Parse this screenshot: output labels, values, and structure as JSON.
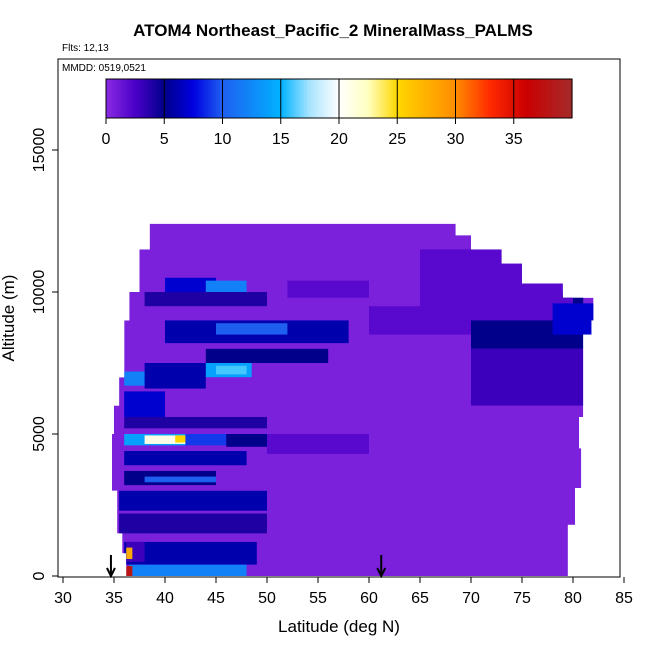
{
  "chart_data": {
    "type": "heatmap",
    "title": "ATOM4 Northeast_Pacific_2 MineralMass_PALMS",
    "flights_label": "Flts: 12,13",
    "dates_label": "MMDD: 0519,0521",
    "xlabel": "Latitude (deg N)",
    "ylabel": "Altitude (m)",
    "xlim": [
      30,
      85
    ],
    "ylim": [
      0,
      18000
    ],
    "x_ticks": [
      "30",
      "35",
      "40",
      "45",
      "50",
      "55",
      "60",
      "65",
      "70",
      "75",
      "80",
      "85"
    ],
    "y_ticks": [
      "0",
      "5000",
      "10000",
      "15000"
    ],
    "colorbar": {
      "range": [
        0,
        40
      ],
      "ticks": [
        "0",
        "5",
        "10",
        "15",
        "20",
        "25",
        "30",
        "35"
      ],
      "stops": [
        {
          "v": 0,
          "c": "#8a2be2"
        },
        {
          "v": 2.5,
          "c": "#4b00c8"
        },
        {
          "v": 5,
          "c": "#00008b"
        },
        {
          "v": 7.5,
          "c": "#0000e0"
        },
        {
          "v": 10,
          "c": "#1e5ff0"
        },
        {
          "v": 15,
          "c": "#00b2ff"
        },
        {
          "v": 17.5,
          "c": "#a9e4ff"
        },
        {
          "v": 20,
          "c": "#ffffff"
        },
        {
          "v": 22.5,
          "c": "#ffffc0"
        },
        {
          "v": 25,
          "c": "#ffd700"
        },
        {
          "v": 30,
          "c": "#ff8c00"
        },
        {
          "v": 33,
          "c": "#ff2a00"
        },
        {
          "v": 36,
          "c": "#cc0000"
        },
        {
          "v": 40,
          "c": "#a52a2a"
        }
      ]
    },
    "arrows_latitude": [
      34.7,
      61.2
    ],
    "domain_outline": [
      [
        36.2,
        0
      ],
      [
        79.5,
        0
      ],
      [
        79.5,
        1800
      ],
      [
        80.2,
        1800
      ],
      [
        80.2,
        3100
      ],
      [
        80.8,
        3100
      ],
      [
        80.8,
        4500
      ],
      [
        80.6,
        4500
      ],
      [
        80.6,
        5600
      ],
      [
        81.0,
        5600
      ],
      [
        81.0,
        8500
      ],
      [
        81.8,
        8500
      ],
      [
        81.8,
        9000
      ],
      [
        82.0,
        9000
      ],
      [
        82.0,
        9800
      ],
      [
        79.0,
        9800
      ],
      [
        79.0,
        10300
      ],
      [
        75.0,
        10300
      ],
      [
        75.0,
        11000
      ],
      [
        73.0,
        11000
      ],
      [
        73.0,
        11500
      ],
      [
        70.0,
        11500
      ],
      [
        70.0,
        12000
      ],
      [
        68.5,
        12000
      ],
      [
        68.5,
        12400
      ],
      [
        38.5,
        12400
      ],
      [
        38.5,
        11500
      ],
      [
        37.5,
        11500
      ],
      [
        37.5,
        10000
      ],
      [
        36.5,
        10000
      ],
      [
        36.5,
        9000
      ],
      [
        36.0,
        9000
      ],
      [
        36.0,
        7000
      ],
      [
        35.5,
        7000
      ],
      [
        35.5,
        6000
      ],
      [
        35.0,
        6000
      ],
      [
        35.0,
        5000
      ],
      [
        34.8,
        5000
      ],
      [
        34.8,
        3000
      ],
      [
        35.3,
        3000
      ],
      [
        35.3,
        1500
      ],
      [
        35.8,
        1500
      ],
      [
        35.8,
        800
      ],
      [
        36.2,
        800
      ],
      [
        36.2,
        0
      ]
    ],
    "blobs": [
      {
        "lat": [
          36.0,
          42.0
        ],
        "alt": [
          4600,
          5000
        ],
        "val": 14
      },
      {
        "lat": [
          38.0,
          42.0
        ],
        "alt": [
          4650,
          4950
        ],
        "val": 21
      },
      {
        "lat": [
          41.0,
          42.2
        ],
        "alt": [
          4700,
          4950
        ],
        "val": 25
      },
      {
        "lat": [
          42.0,
          46.0
        ],
        "alt": [
          4600,
          5000
        ],
        "val": 9
      },
      {
        "lat": [
          46.0,
          52.0
        ],
        "alt": [
          4550,
          5000
        ],
        "val": 5
      },
      {
        "lat": [
          36.0,
          41.0
        ],
        "alt": [
          6700,
          7200
        ],
        "val": 12
      },
      {
        "lat": [
          43.0,
          48.5
        ],
        "alt": [
          7000,
          7500
        ],
        "val": 14
      },
      {
        "lat": [
          45.0,
          48.0
        ],
        "alt": [
          7100,
          7400
        ],
        "val": 16
      },
      {
        "lat": [
          38.0,
          44.0
        ],
        "alt": [
          6600,
          7500
        ],
        "val": 6
      },
      {
        "lat": [
          44.0,
          56.0
        ],
        "alt": [
          7500,
          8000
        ],
        "val": 5
      },
      {
        "lat": [
          40.0,
          58.0
        ],
        "alt": [
          8200,
          9000
        ],
        "val": 6
      },
      {
        "lat": [
          45.0,
          52.0
        ],
        "alt": [
          8500,
          8900
        ],
        "val": 10
      },
      {
        "lat": [
          40.0,
          45.0
        ],
        "alt": [
          9900,
          10500
        ],
        "val": 7
      },
      {
        "lat": [
          44.0,
          48.0
        ],
        "alt": [
          9900,
          10400
        ],
        "val": 12
      },
      {
        "lat": [
          38.0,
          50.0
        ],
        "alt": [
          9500,
          10000
        ],
        "val": 4
      },
      {
        "lat": [
          36.0,
          40.0
        ],
        "alt": [
          5600,
          6500
        ],
        "val": 7
      },
      {
        "lat": [
          36.0,
          50.0
        ],
        "alt": [
          5200,
          5600
        ],
        "val": 4
      },
      {
        "lat": [
          36.0,
          48.0
        ],
        "alt": [
          3900,
          4400
        ],
        "val": 6
      },
      {
        "lat": [
          36.0,
          45.0
        ],
        "alt": [
          3200,
          3700
        ],
        "val": 5
      },
      {
        "lat": [
          38.0,
          45.0
        ],
        "alt": [
          3300,
          3500
        ],
        "val": 10
      },
      {
        "lat": [
          35.5,
          50.0
        ],
        "alt": [
          2300,
          3000
        ],
        "val": 6
      },
      {
        "lat": [
          35.5,
          50.0
        ],
        "alt": [
          1500,
          2200
        ],
        "val": 4
      },
      {
        "lat": [
          36.0,
          49.0
        ],
        "alt": [
          400,
          1200
        ],
        "val": 6
      },
      {
        "lat": [
          36.2,
          38.0
        ],
        "alt": [
          500,
          1200
        ],
        "val": 3
      },
      {
        "lat": [
          36.5,
          48.0
        ],
        "alt": [
          0,
          400
        ],
        "val": 12
      },
      {
        "lat": [
          36.2,
          36.8
        ],
        "alt": [
          600,
          1000
        ],
        "val": 28
      },
      {
        "lat": [
          36.2,
          36.8
        ],
        "alt": [
          0,
          350
        ],
        "val": 38
      },
      {
        "lat": [
          50.0,
          60.0
        ],
        "alt": [
          4300,
          5000
        ],
        "val": 2
      },
      {
        "lat": [
          70.0,
          81.0
        ],
        "alt": [
          8000,
          10000
        ],
        "val": 5
      },
      {
        "lat": [
          70.0,
          81.0
        ],
        "alt": [
          6000,
          8000
        ],
        "val": 3
      },
      {
        "lat": [
          65.0,
          80.0
        ],
        "alt": [
          9000,
          11500
        ],
        "val": 2
      },
      {
        "lat": [
          78.0,
          82.0
        ],
        "alt": [
          8500,
          9600
        ],
        "val": 7
      },
      {
        "lat": [
          60.0,
          70.0
        ],
        "alt": [
          8500,
          9500
        ],
        "val": 2
      },
      {
        "lat": [
          52.0,
          60.0
        ],
        "alt": [
          9800,
          10400
        ],
        "val": 2
      }
    ]
  }
}
